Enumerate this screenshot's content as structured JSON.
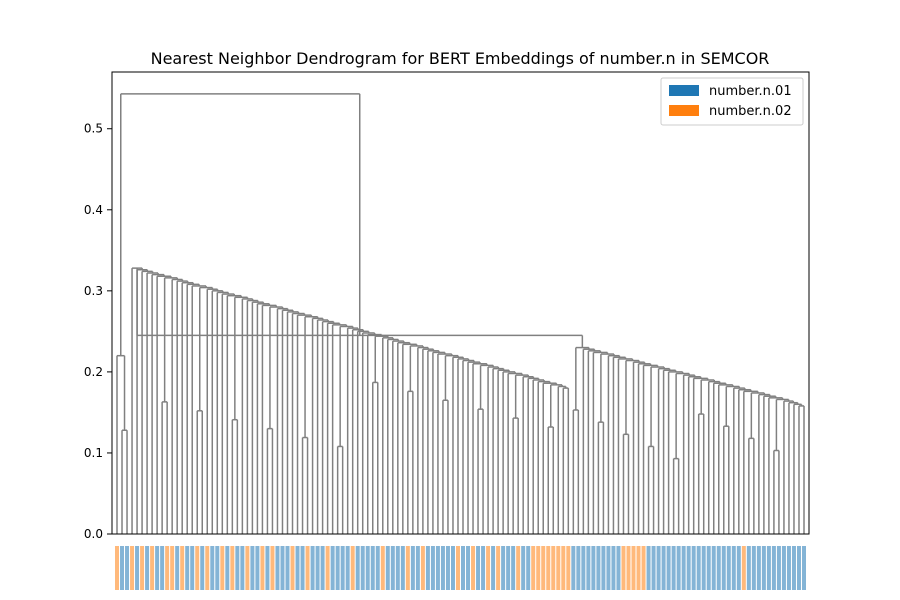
{
  "chart_data": {
    "type": "dendrogram",
    "title": "Nearest Neighbor Dendrogram for BERT Embeddings of number.n in SEMCOR",
    "xlabel": "",
    "ylabel": "",
    "ylim": [
      0,
      0.57
    ],
    "yticks": [
      0.0,
      0.1,
      0.2,
      0.3,
      0.4,
      0.5
    ],
    "ytick_labels": [
      "0.0",
      "0.1",
      "0.2",
      "0.3",
      "0.4",
      "0.5"
    ],
    "grid": false,
    "legend_position": "top-right",
    "link_color": "#808080",
    "leaf_count": 138,
    "legend": [
      {
        "label": "number.n.01",
        "color": "#1f77b4"
      },
      {
        "label": "number.n.02",
        "color": "#ff7f0e"
      }
    ],
    "major_merge_heights": [
      0.543,
      0.326,
      0.317,
      0.31,
      0.305,
      0.3,
      0.294,
      0.29,
      0.287,
      0.283,
      0.279,
      0.274,
      0.268,
      0.26,
      0.252,
      0.245,
      0.244,
      0.236,
      0.232,
      0.224,
      0.219,
      0.214,
      0.212,
      0.21,
      0.208,
      0.205,
      0.201,
      0.197,
      0.194,
      0.189,
      0.186,
      0.18,
      0.177,
      0.171,
      0.165,
      0.159,
      0.155,
      0.15,
      0.143,
      0.133,
      0.121,
      0.11,
      0.098,
      0.083,
      0.059,
      0.037,
      0.005
    ],
    "leaf_sense_colors": [
      "#ff7f0e",
      "#1f77b4",
      "#1f77b4",
      "#ff7f0e",
      "#1f77b4",
      "#ff7f0e",
      "#1f77b4",
      "#ff7f0e",
      "#1f77b4",
      "#1f77b4",
      "#ff7f0e",
      "#ff7f0e",
      "#1f77b4",
      "#ff7f0e",
      "#1f77b4",
      "#1f77b4",
      "#ff7f0e",
      "#1f77b4",
      "#ff7f0e",
      "#1f77b4",
      "#1f77b4",
      "#ff7f0e",
      "#1f77b4",
      "#ff7f0e",
      "#1f77b4",
      "#1f77b4",
      "#ff7f0e",
      "#1f77b4",
      "#1f77b4",
      "#ff7f0e",
      "#1f77b4",
      "#ff7f0e",
      "#1f77b4",
      "#1f77b4",
      "#1f77b4",
      "#ff7f0e",
      "#1f77b4",
      "#1f77b4",
      "#ff7f0e",
      "#1f77b4",
      "#1f77b4",
      "#1f77b4",
      "#ff7f0e",
      "#1f77b4",
      "#1f77b4",
      "#1f77b4",
      "#1f77b4",
      "#ff7f0e",
      "#1f77b4",
      "#1f77b4",
      "#1f77b4",
      "#1f77b4",
      "#1f77b4",
      "#ff7f0e",
      "#1f77b4",
      "#1f77b4",
      "#1f77b4",
      "#1f77b4",
      "#ff7f0e",
      "#1f77b4",
      "#1f77b4",
      "#ff7f0e",
      "#1f77b4",
      "#1f77b4",
      "#1f77b4",
      "#1f77b4",
      "#1f77b4",
      "#1f77b4",
      "#ff7f0e",
      "#1f77b4",
      "#1f77b4",
      "#ff7f0e",
      "#1f77b4",
      "#1f77b4",
      "#ff7f0e",
      "#1f77b4",
      "#ff7f0e",
      "#1f77b4",
      "#1f77b4",
      "#1f77b4",
      "#ff7f0e",
      "#1f77b4",
      "#1f77b4",
      "#ff7f0e",
      "#ff7f0e",
      "#ff7f0e",
      "#ff7f0e",
      "#ff7f0e",
      "#ff7f0e",
      "#ff7f0e",
      "#ff7f0e",
      "#1f77b4",
      "#1f77b4",
      "#1f77b4",
      "#1f77b4",
      "#1f77b4",
      "#1f77b4",
      "#1f77b4",
      "#1f77b4",
      "#1f77b4",
      "#1f77b4",
      "#ff7f0e",
      "#ff7f0e",
      "#ff7f0e",
      "#ff7f0e",
      "#ff7f0e",
      "#1f77b4",
      "#1f77b4",
      "#1f77b4",
      "#1f77b4",
      "#1f77b4",
      "#1f77b4",
      "#1f77b4",
      "#1f77b4",
      "#1f77b4",
      "#1f77b4",
      "#1f77b4",
      "#1f77b4",
      "#1f77b4",
      "#1f77b4",
      "#1f77b4",
      "#1f77b4",
      "#1f77b4",
      "#1f77b4",
      "#1f77b4",
      "#ff7f0e",
      "#1f77b4",
      "#1f77b4",
      "#1f77b4",
      "#1f77b4",
      "#1f77b4",
      "#1f77b4",
      "#1f77b4",
      "#1f77b4",
      "#1f77b4",
      "#1f77b4",
      "#1f77b4",
      "#1f77b4"
    ]
  }
}
